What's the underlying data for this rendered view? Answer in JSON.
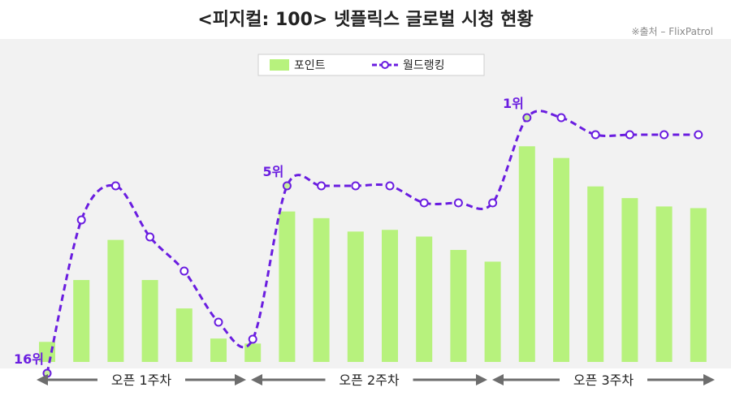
{
  "title": "<피지컬: 100> 넷플릭스 글로벌 시청 현황",
  "source": "※출처 – FlixPatrol",
  "colors": {
    "bar": "#b7f27d",
    "line": "#6a1de0",
    "marker_fill": "#c7ef9e",
    "panel": "#f2f2f2",
    "arrow": "#6d6d6d"
  },
  "chart_data": {
    "type": "bar",
    "legend_position": "top-center",
    "series": [
      {
        "name": "포인트",
        "type": "bar",
        "values": [
          12,
          49,
          73,
          49,
          32,
          14,
          11,
          90,
          86,
          78,
          79,
          75,
          67,
          60,
          129,
          122,
          105,
          98,
          93,
          92
        ]
      },
      {
        "name": "월드랭킹",
        "type": "line",
        "values": [
          16,
          7,
          5,
          8,
          10,
          13,
          14,
          5,
          5,
          5,
          5,
          6,
          6,
          6,
          1,
          1,
          2,
          2,
          2,
          2
        ]
      }
    ],
    "point_labels": [
      {
        "index": 0,
        "text": "16위"
      },
      {
        "index": 7,
        "text": "5위"
      },
      {
        "index": 14,
        "text": "1위"
      }
    ],
    "groups": [
      {
        "label": "오픈 1주차",
        "start": 0,
        "end": 6
      },
      {
        "label": "오픈 2주차",
        "start": 7,
        "end": 13
      },
      {
        "label": "오픈 3주차",
        "start": 14,
        "end": 19
      }
    ],
    "grid": false
  }
}
